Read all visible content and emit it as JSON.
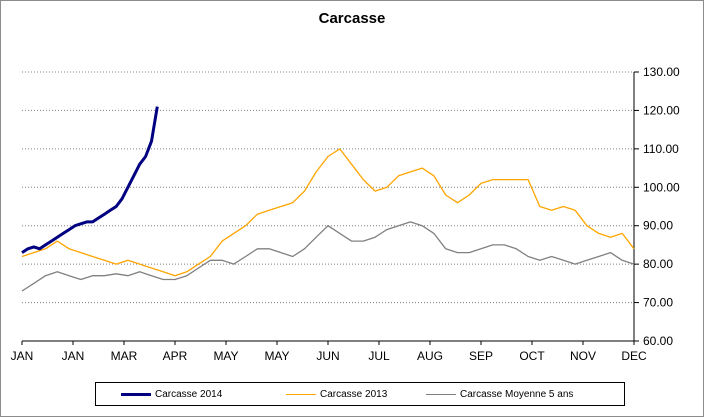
{
  "chart_data": {
    "type": "line",
    "title": "Carcasse",
    "xlabel": "",
    "ylabel": "",
    "ylim": [
      60,
      130
    ],
    "yticks": [
      "60.00",
      "70.00",
      "80.00",
      "90.00",
      "100.00",
      "110.00",
      "120.00",
      "130.00"
    ],
    "y_axis_side": "right",
    "grid": "horizontal dotted",
    "x_tick_labels": [
      "JAN",
      "JAN",
      "MAR",
      "APR",
      "MAY",
      "MAY",
      "JUN",
      "JUL",
      "AUG",
      "SEP",
      "OCT",
      "NOV",
      "DEC"
    ],
    "x_unit": "week",
    "xlim": [
      0,
      52
    ],
    "legend_position": "bottom",
    "series": [
      {
        "name": "Carcasse 2014",
        "color": "#000080",
        "width": 3,
        "x": [
          0,
          0.5,
          1,
          1.5,
          2,
          2.5,
          3,
          3.5,
          4,
          4.5,
          5,
          5.5,
          6,
          6.5,
          7,
          7.5,
          8,
          8.5,
          9,
          9.5,
          10,
          10.5,
          11,
          11.5
        ],
        "values": [
          83,
          84,
          84.5,
          84,
          85,
          86,
          87,
          88,
          89,
          90,
          90.5,
          91,
          91,
          92,
          93,
          94,
          95,
          97,
          100,
          103,
          106,
          108,
          112,
          121
        ]
      },
      {
        "name": "Carcasse 2013",
        "color": "#ffa500",
        "width": 1.3,
        "x": [
          0,
          1,
          2,
          3,
          4,
          5,
          6,
          7,
          8,
          9,
          10,
          11,
          12,
          13,
          14,
          15,
          16,
          17,
          18,
          19,
          20,
          21,
          22,
          23,
          24,
          25,
          26,
          27,
          28,
          29,
          30,
          31,
          32,
          33,
          34,
          35,
          36,
          37,
          38,
          39,
          40,
          41,
          42,
          43,
          44,
          45,
          46,
          47,
          48,
          49,
          50,
          51,
          52
        ],
        "values": [
          82,
          83,
          84,
          86,
          84,
          83,
          82,
          81,
          80,
          81,
          80,
          79,
          78,
          77,
          78,
          80,
          82,
          86,
          88,
          90,
          93,
          94,
          95,
          96,
          99,
          104,
          108,
          110,
          106,
          102,
          99,
          100,
          103,
          104,
          105,
          103,
          98,
          96,
          98,
          101,
          102,
          102,
          102,
          102,
          95,
          94,
          95,
          94,
          90,
          88,
          87,
          88,
          84
        ]
      },
      {
        "name": "Carcasse Moyenne 5 ans",
        "color": "#808080",
        "width": 1.3,
        "x": [
          0,
          1,
          2,
          3,
          4,
          5,
          6,
          7,
          8,
          9,
          10,
          11,
          12,
          13,
          14,
          15,
          16,
          17,
          18,
          19,
          20,
          21,
          22,
          23,
          24,
          25,
          26,
          27,
          28,
          29,
          30,
          31,
          32,
          33,
          34,
          35,
          36,
          37,
          38,
          39,
          40,
          41,
          42,
          43,
          44,
          45,
          46,
          47,
          48,
          49,
          50,
          51,
          52
        ],
        "values": [
          73,
          75,
          77,
          78,
          77,
          76,
          77,
          77,
          77.5,
          77,
          78,
          77,
          76,
          76,
          77,
          79,
          81,
          81,
          80,
          82,
          84,
          84,
          83,
          82,
          84,
          87,
          90,
          88,
          86,
          86,
          87,
          89,
          90,
          91,
          90,
          88,
          84,
          83,
          83,
          84,
          85,
          85,
          84,
          82,
          81,
          82,
          81,
          80,
          81,
          82,
          83,
          81,
          80
        ]
      }
    ]
  }
}
